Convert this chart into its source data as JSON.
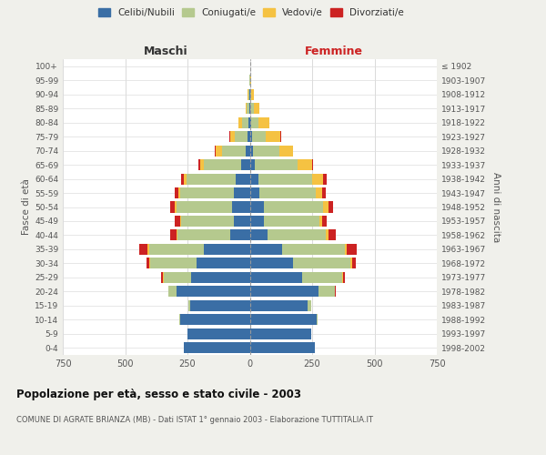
{
  "age_groups": [
    "0-4",
    "5-9",
    "10-14",
    "15-19",
    "20-24",
    "25-29",
    "30-34",
    "35-39",
    "40-44",
    "45-49",
    "50-54",
    "55-59",
    "60-64",
    "65-69",
    "70-74",
    "75-79",
    "80-84",
    "85-89",
    "90-94",
    "95-99",
    "100+"
  ],
  "birth_years": [
    "1998-2002",
    "1993-1997",
    "1988-1992",
    "1983-1987",
    "1978-1982",
    "1973-1977",
    "1968-1972",
    "1963-1967",
    "1958-1962",
    "1953-1957",
    "1948-1952",
    "1943-1947",
    "1938-1942",
    "1933-1937",
    "1928-1932",
    "1923-1927",
    "1918-1922",
    "1913-1917",
    "1908-1912",
    "1903-1907",
    "≤ 1902"
  ],
  "males": {
    "celibi": [
      265,
      250,
      280,
      240,
      295,
      235,
      215,
      185,
      80,
      65,
      70,
      65,
      55,
      35,
      18,
      10,
      5,
      3,
      2,
      0,
      0
    ],
    "coniugati": [
      0,
      0,
      2,
      5,
      30,
      110,
      185,
      220,
      210,
      210,
      225,
      215,
      200,
      150,
      95,
      50,
      25,
      10,
      5,
      2,
      0
    ],
    "vedovi": [
      0,
      0,
      0,
      0,
      0,
      5,
      5,
      5,
      5,
      5,
      5,
      5,
      10,
      15,
      25,
      20,
      15,
      5,
      2,
      0,
      0
    ],
    "divorziati": [
      0,
      0,
      0,
      0,
      2,
      5,
      10,
      35,
      25,
      20,
      20,
      15,
      10,
      5,
      3,
      2,
      0,
      0,
      0,
      0,
      0
    ]
  },
  "females": {
    "nubili": [
      260,
      245,
      270,
      230,
      275,
      210,
      175,
      130,
      70,
      55,
      55,
      40,
      35,
      20,
      12,
      8,
      5,
      3,
      2,
      0,
      0
    ],
    "coniugate": [
      0,
      0,
      2,
      15,
      65,
      160,
      230,
      250,
      235,
      225,
      240,
      225,
      215,
      170,
      105,
      55,
      28,
      12,
      5,
      2,
      0
    ],
    "vedove": [
      0,
      0,
      0,
      0,
      2,
      5,
      5,
      8,
      10,
      10,
      20,
      25,
      45,
      60,
      55,
      60,
      45,
      25,
      8,
      2,
      0
    ],
    "divorziate": [
      0,
      0,
      0,
      0,
      2,
      8,
      15,
      40,
      30,
      20,
      20,
      15,
      15,
      5,
      3,
      2,
      2,
      0,
      0,
      0,
      0
    ]
  },
  "colors": {
    "celibi": "#3a6ea5",
    "coniugati": "#b5c98e",
    "vedovi": "#f5c242",
    "divorziati": "#cc2222"
  },
  "xlim": 750,
  "title": "Popolazione per età, sesso e stato civile - 2003",
  "subtitle": "COMUNE DI AGRATE BRIANZA (MB) - Dati ISTAT 1° gennaio 2003 - Elaborazione TUTTITALIA.IT",
  "ylabel_left": "Fasce di età",
  "ylabel_right": "Anni di nascita",
  "xlabel_left": "Maschi",
  "xlabel_right": "Femmine",
  "legend_labels": [
    "Celibi/Nubili",
    "Coniugati/e",
    "Vedovi/e",
    "Divorziati/e"
  ],
  "bg_color": "#f0f0eb",
  "plot_bg": "#ffffff"
}
